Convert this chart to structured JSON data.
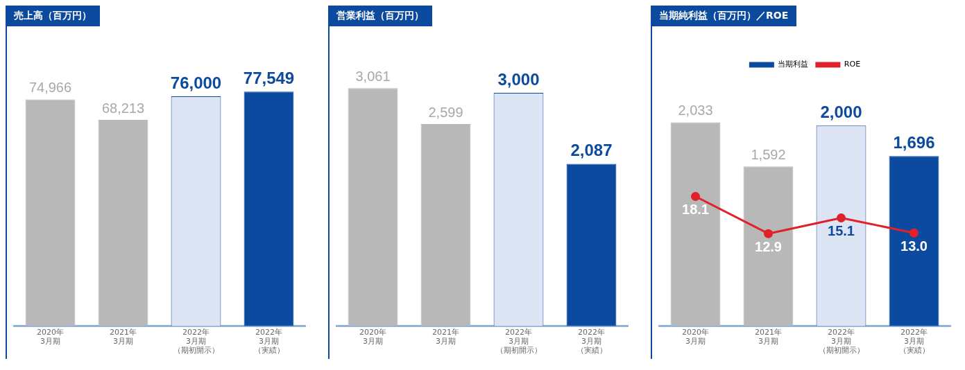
{
  "chart_data": [
    {
      "type": "bar",
      "title": "売上高（百万円）",
      "categories": [
        "2020年3月期",
        "2021年3月期",
        "2022年3月期（期初開示）",
        "2022年3月期（実績）"
      ],
      "values": [
        74966,
        68213,
        76000,
        77549
      ],
      "value_labels": [
        "74,966",
        "68,213",
        "76,000",
        "77,549"
      ],
      "colors": [
        "#b8b8b8",
        "#b8b8b8",
        "#dde5f5",
        "#0b4a9e"
      ]
    },
    {
      "type": "bar",
      "title": "営業利益（百万円）",
      "categories": [
        "2020年3月期",
        "2021年3月期",
        "2022年3月期（期初開示）",
        "2022年3月期（実績）"
      ],
      "values": [
        3061,
        2599,
        3000,
        2087
      ],
      "value_labels": [
        "3,061",
        "2,599",
        "3,000",
        "2,087"
      ],
      "colors": [
        "#b8b8b8",
        "#b8b8b8",
        "#dde5f5",
        "#0b4a9e"
      ]
    },
    {
      "type": "bar",
      "title": "当期純利益（百万円）／ROE",
      "categories": [
        "2020年3月期",
        "2021年3月期",
        "2022年3月期（期初開示）",
        "2022年3月期（実績）"
      ],
      "series": [
        {
          "name": "当期利益",
          "color": "#0b4a9e",
          "colors": [
            "#b8b8b8",
            "#b8b8b8",
            "#dde5f5",
            "#0b4a9e"
          ],
          "values": [
            2033,
            1592,
            2000,
            1696
          ],
          "value_labels": [
            "2,033",
            "1,592",
            "2,000",
            "1,696"
          ]
        },
        {
          "name": "ROE",
          "type": "line",
          "axis": "y2",
          "color": "#e0202a",
          "values": [
            18.1,
            12.9,
            15.1,
            13.0
          ],
          "value_labels": [
            "18.1",
            "12.9",
            "15.1",
            "13.0"
          ]
        }
      ],
      "marker": "circle",
      "legend": "top"
    }
  ]
}
